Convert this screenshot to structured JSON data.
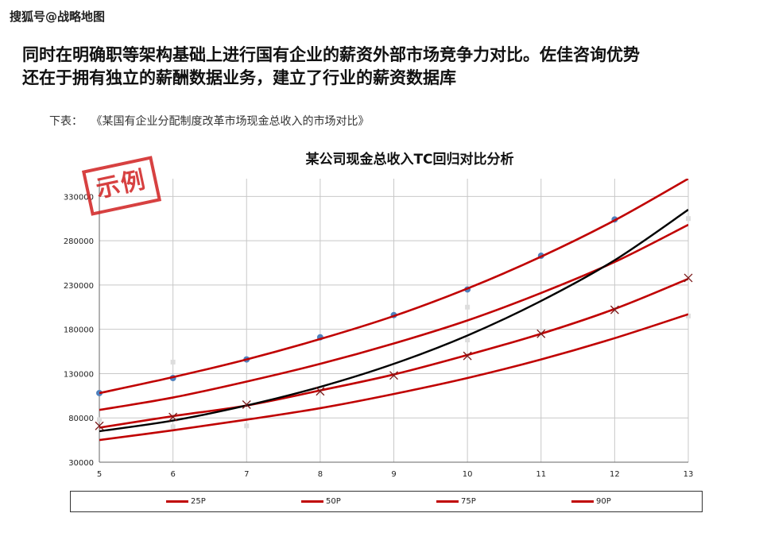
{
  "watermark": "搜狐号@战略地图",
  "headline": {
    "line1": "同时在明确职等架构基础上进行国有企业的薪资外部市场竞争力对比。佐佳咨询优势",
    "line2": "还在于拥有独立的薪酬数据业务，建立了行业的薪资数据库"
  },
  "caption": {
    "prefix": "下表：",
    "text": "《某国有企业分配制度改革市场现金总收入的市场对比》"
  },
  "stamp": "示例",
  "chart_data": {
    "type": "line",
    "title": "某公司现金总收入TC回归对比分析",
    "xlabel": "",
    "ylabel": "",
    "xlim": [
      5,
      13
    ],
    "ylim": [
      30000,
      350000
    ],
    "x_ticks": [
      5,
      6,
      7,
      8,
      9,
      10,
      11,
      12,
      13
    ],
    "y_ticks": [
      30000,
      80000,
      130000,
      180000,
      230000,
      280000,
      330000
    ],
    "grid": true,
    "legend_position": "bottom",
    "series": [
      {
        "name": "25P",
        "color": "#c00000",
        "x": [
          5,
          6,
          7,
          8,
          9,
          10,
          11,
          12,
          13
        ],
        "values": [
          55000,
          66000,
          78000,
          91000,
          107000,
          125000,
          146000,
          170000,
          197000
        ]
      },
      {
        "name": "50P",
        "color": "#c00000",
        "x": [
          5,
          6,
          7,
          8,
          9,
          10,
          11,
          12,
          13
        ],
        "values": [
          89000,
          103000,
          121000,
          141000,
          164000,
          190000,
          221000,
          256000,
          298000
        ]
      },
      {
        "name": "75P",
        "color": "#c00000",
        "x": [
          5,
          6,
          7,
          8,
          9,
          10,
          11,
          12,
          13
        ],
        "values": [
          69000,
          82000,
          94000,
          111000,
          129000,
          151000,
          175000,
          203000,
          237000
        ]
      },
      {
        "name": "90P",
        "color": "#c00000",
        "x": [
          5,
          6,
          7,
          8,
          9,
          10,
          11,
          12,
          13
        ],
        "values": [
          108000,
          126000,
          146000,
          169000,
          195000,
          226000,
          262000,
          303000,
          350000
        ]
      },
      {
        "name": "",
        "color": "#000000",
        "x": [
          5,
          6,
          7,
          8,
          9,
          10,
          11,
          12,
          13
        ],
        "values": [
          65000,
          77000,
          94000,
          115000,
          141000,
          173000,
          212000,
          258000,
          315000
        ]
      }
    ],
    "points": [
      {
        "marker": "circle",
        "color": "#4f81bd",
        "x": [
          5,
          6,
          7,
          8,
          9,
          10,
          11,
          12
        ],
        "values": [
          108000,
          125000,
          146000,
          171000,
          196000,
          225000,
          263000,
          304000
        ]
      },
      {
        "marker": "x",
        "color": "#c00000",
        "x": [
          5,
          6,
          7,
          8,
          9,
          10,
          11,
          12,
          13
        ],
        "values": [
          71000,
          81000,
          95000,
          110000,
          128000,
          150000,
          175000,
          202000,
          238000
        ]
      },
      {
        "marker": "square",
        "color": "#dddddd",
        "x": [
          5,
          6,
          6,
          7,
          10,
          10,
          13,
          13
        ],
        "values": [
          78000,
          143000,
          70000,
          71000,
          205000,
          168000,
          305000,
          195000
        ]
      }
    ]
  }
}
